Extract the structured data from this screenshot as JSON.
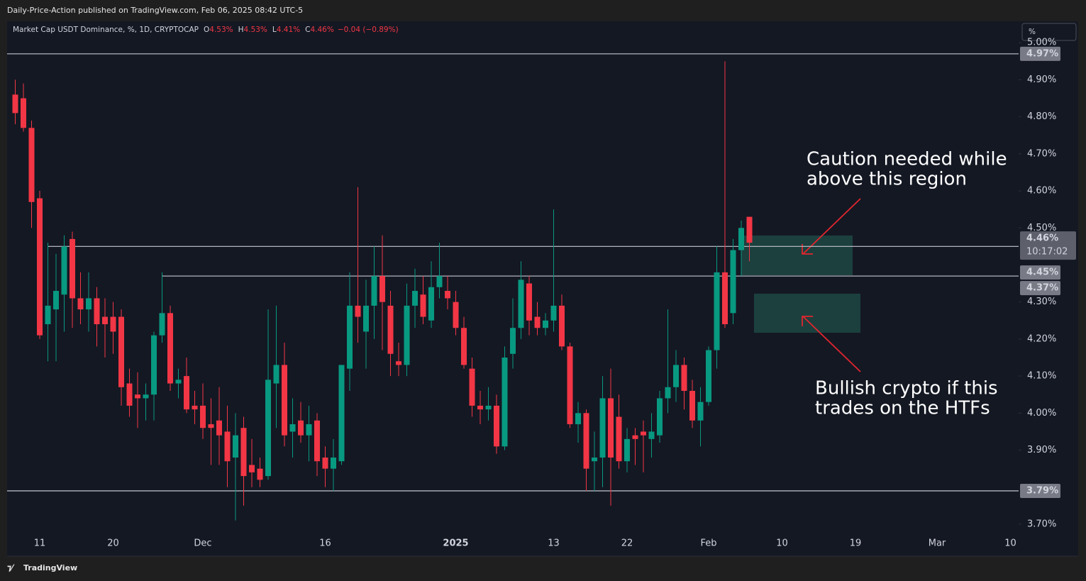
{
  "chart_data": {
    "type": "candlestick",
    "header": "Daily-Price-Action published on TradingView.com, Feb 06, 2025 08:42 UTC-5",
    "symbol": "Market Cap USDT Dominance, %, 1D, CRYPTOCAP",
    "legend": [
      {
        "key": "O",
        "value": "4.53%"
      },
      {
        "key": "H",
        "value": "4.53%"
      },
      {
        "key": "L",
        "value": "4.41%"
      },
      {
        "key": "C",
        "value": "4.46%"
      }
    ],
    "change": "−0.04 (−0.89%)",
    "scale_mode": "%",
    "brand": "TradingView",
    "up_color": "#089981",
    "down_color": "#f23645",
    "x": [
      "2024-11-08",
      "2024-11-09",
      "2024-11-10",
      "2024-11-11",
      "2024-11-12",
      "2024-11-13",
      "2024-11-14",
      "2024-11-15",
      "2024-11-16",
      "2024-11-17",
      "2024-11-18",
      "2024-11-19",
      "2024-11-20",
      "2024-11-21",
      "2024-11-22",
      "2024-11-23",
      "2024-11-24",
      "2024-11-25",
      "2024-11-26",
      "2024-11-27",
      "2024-11-28",
      "2024-11-29",
      "2024-11-30",
      "2024-12-01",
      "2024-12-02",
      "2024-12-03",
      "2024-12-04",
      "2024-12-05",
      "2024-12-06",
      "2024-12-07",
      "2024-12-08",
      "2024-12-09",
      "2024-12-10",
      "2024-12-11",
      "2024-12-12",
      "2024-12-13",
      "2024-12-14",
      "2024-12-15",
      "2024-12-16",
      "2024-12-17",
      "2024-12-18",
      "2024-12-19",
      "2024-12-20",
      "2024-12-21",
      "2024-12-22",
      "2024-12-23",
      "2024-12-24",
      "2024-12-25",
      "2024-12-26",
      "2024-12-27",
      "2024-12-28",
      "2024-12-29",
      "2024-12-30",
      "2024-12-31",
      "2025-01-01",
      "2025-01-02",
      "2025-01-03",
      "2025-01-04",
      "2025-01-05",
      "2025-01-06",
      "2025-01-07",
      "2025-01-08",
      "2025-01-09",
      "2025-01-10",
      "2025-01-11",
      "2025-01-12",
      "2025-01-13",
      "2025-01-14",
      "2025-01-15",
      "2025-01-16",
      "2025-01-17",
      "2025-01-18",
      "2025-01-19",
      "2025-01-20",
      "2025-01-21",
      "2025-01-22",
      "2025-01-23",
      "2025-01-24",
      "2025-01-25",
      "2025-01-26",
      "2025-01-27",
      "2025-01-28",
      "2025-01-29",
      "2025-01-30",
      "2025-01-31",
      "2025-02-01",
      "2025-02-02",
      "2025-02-03",
      "2025-02-04",
      "2025-02-05",
      "2025-02-06"
    ],
    "open": [
      4.86,
      4.85,
      4.77,
      4.58,
      4.24,
      4.28,
      4.32,
      4.47,
      4.31,
      4.28,
      4.31,
      4.26,
      4.26,
      4.26,
      4.08,
      4.05,
      4.04,
      4.05,
      4.21,
      4.27,
      4.08,
      4.1,
      4.02,
      4.02,
      3.97,
      3.98,
      3.95,
      3.88,
      3.96,
      3.86,
      3.85,
      3.83,
      4.08,
      4.13,
      3.95,
      3.98,
      3.94,
      3.98,
      3.88,
      3.85,
      3.87,
      4.12,
      4.29,
      4.22,
      4.29,
      4.37,
      4.29,
      4.14,
      4.13,
      4.29,
      4.32,
      4.25,
      4.34,
      4.33,
      4.3,
      4.23,
      4.12,
      4.02,
      4.01,
      4.02,
      3.91,
      4.16,
      4.23,
      4.35,
      4.26,
      4.23,
      4.25,
      4.29,
      4.18,
      3.97,
      4.0,
      3.87,
      3.88,
      4.04,
      3.99,
      3.87,
      3.94,
      3.95,
      3.93,
      3.94,
      4.04,
      4.07,
      4.13,
      4.06,
      3.98,
      4.03,
      4.17,
      4.38,
      4.27,
      4.44,
      4.53
    ],
    "high": [
      4.9,
      4.89,
      4.79,
      4.6,
      4.46,
      4.43,
      4.48,
      4.49,
      4.38,
      4.38,
      4.34,
      4.31,
      4.3,
      4.28,
      4.12,
      4.11,
      4.08,
      4.22,
      4.38,
      4.29,
      4.12,
      4.15,
      4.06,
      4.08,
      4.04,
      4.07,
      4.02,
      4.0,
      3.99,
      3.93,
      3.88,
      4.28,
      4.29,
      4.19,
      4.04,
      4.03,
      4.02,
      4.0,
      3.91,
      3.93,
      4.13,
      4.38,
      4.61,
      4.36,
      4.45,
      4.48,
      4.33,
      4.19,
      4.35,
      4.39,
      4.37,
      4.41,
      4.46,
      4.37,
      4.33,
      4.26,
      4.15,
      4.06,
      4.07,
      4.05,
      4.18,
      4.31,
      4.41,
      4.37,
      4.3,
      4.27,
      4.55,
      4.32,
      4.19,
      4.03,
      4.01,
      3.95,
      4.1,
      4.12,
      4.05,
      3.96,
      3.96,
      3.98,
      4.0,
      4.06,
      4.28,
      4.17,
      4.15,
      4.09,
      4.07,
      4.18,
      4.45,
      4.95,
      4.47,
      4.52,
      4.53
    ],
    "low": [
      4.78,
      4.76,
      4.5,
      4.2,
      4.14,
      4.14,
      4.22,
      4.23,
      4.24,
      4.22,
      4.18,
      4.15,
      4.16,
      4.02,
      3.99,
      3.96,
      3.98,
      3.98,
      4.19,
      4.06,
      4.04,
      4.0,
      3.97,
      3.93,
      3.86,
      3.86,
      3.8,
      3.71,
      3.75,
      3.8,
      3.8,
      3.82,
      3.96,
      3.91,
      3.88,
      3.92,
      3.87,
      3.83,
      3.8,
      3.79,
      3.86,
      4.06,
      4.19,
      4.12,
      4.2,
      4.17,
      4.1,
      4.1,
      4.1,
      4.23,
      4.24,
      4.23,
      4.31,
      4.28,
      4.21,
      4.12,
      3.99,
      3.97,
      3.98,
      3.89,
      3.9,
      4.12,
      4.2,
      4.21,
      4.21,
      4.21,
      4.22,
      4.17,
      3.96,
      3.92,
      3.79,
      3.79,
      3.8,
      3.75,
      3.85,
      3.84,
      3.86,
      3.84,
      3.88,
      3.92,
      4.0,
      4.03,
      4.01,
      3.96,
      3.91,
      4.02,
      4.12,
      4.23,
      4.24,
      4.37,
      4.41
    ],
    "close": [
      4.81,
      4.77,
      4.57,
      4.21,
      4.29,
      4.33,
      4.45,
      4.31,
      4.28,
      4.31,
      4.24,
      4.24,
      4.22,
      4.07,
      4.02,
      4.04,
      4.05,
      4.21,
      4.27,
      4.08,
      4.09,
      4.01,
      4.01,
      3.96,
      3.96,
      3.94,
      3.87,
      3.94,
      3.83,
      3.84,
      3.82,
      4.09,
      4.13,
      3.94,
      3.97,
      3.94,
      3.97,
      3.87,
      3.85,
      3.88,
      4.13,
      4.29,
      4.26,
      4.29,
      4.37,
      4.3,
      4.16,
      4.13,
      4.29,
      4.33,
      4.26,
      4.34,
      4.37,
      4.31,
      4.23,
      4.13,
      4.02,
      4.01,
      4.02,
      3.91,
      4.15,
      4.23,
      4.36,
      4.25,
      4.23,
      4.25,
      4.29,
      4.18,
      3.97,
      4.0,
      3.85,
      3.88,
      4.04,
      3.88,
      3.87,
      3.93,
      3.93,
      3.94,
      3.95,
      4.04,
      4.07,
      4.13,
      4.06,
      3.98,
      4.03,
      4.17,
      4.38,
      4.24,
      4.44,
      4.5,
      4.46
    ],
    "xlim": [
      "2024-11-07",
      "2025-03-11"
    ],
    "xticks": [
      {
        "value": "2024-11-11",
        "label": "11"
      },
      {
        "value": "2024-11-20",
        "label": "20"
      },
      {
        "value": "2024-12-01",
        "label": "Dec"
      },
      {
        "value": "2024-12-16",
        "label": "16"
      },
      {
        "value": "2025-01-01",
        "label": "2025"
      },
      {
        "value": "2025-01-13",
        "label": "13"
      },
      {
        "value": "2025-01-22",
        "label": "22"
      },
      {
        "value": "2025-02-01",
        "label": "Feb"
      },
      {
        "value": "2025-02-10",
        "label": "10"
      },
      {
        "value": "2025-02-19",
        "label": "19"
      },
      {
        "value": "2025-03-01",
        "label": "Mar"
      },
      {
        "value": "2025-03-10",
        "label": "10"
      }
    ],
    "ylim": [
      3.675,
      5.01
    ],
    "yticks": [
      {
        "value": 5.0,
        "label": "5.00%"
      },
      {
        "value": 4.9,
        "label": "4.90%"
      },
      {
        "value": 4.8,
        "label": "4.80%"
      },
      {
        "value": 4.7,
        "label": "4.70%"
      },
      {
        "value": 4.6,
        "label": "4.60%"
      },
      {
        "value": 4.5,
        "label": "4.50%"
      },
      {
        "value": 4.3,
        "label": "4.30%"
      },
      {
        "value": 4.2,
        "label": "4.20%"
      },
      {
        "value": 4.1,
        "label": "4.10%"
      },
      {
        "value": 4.0,
        "label": "4.00%"
      },
      {
        "value": 3.9,
        "label": "3.90%"
      },
      {
        "value": 3.7,
        "label": "3.70%"
      }
    ],
    "levels": [
      {
        "value": 4.97,
        "label": "4.97%"
      },
      {
        "value": 4.45,
        "label": "4.45%"
      },
      {
        "value": 4.37,
        "label": "4.37%"
      },
      {
        "value": 3.79,
        "label": "3.79%"
      }
    ],
    "last_price": {
      "value": 4.46,
      "label": "4.46%",
      "countdown": "10:17:02"
    },
    "annotations": [
      {
        "lines": [
          "Caution needed while",
          "above this region"
        ]
      },
      {
        "lines": [
          "Bullish crypto if this",
          "trades on the HTFs"
        ]
      }
    ]
  }
}
